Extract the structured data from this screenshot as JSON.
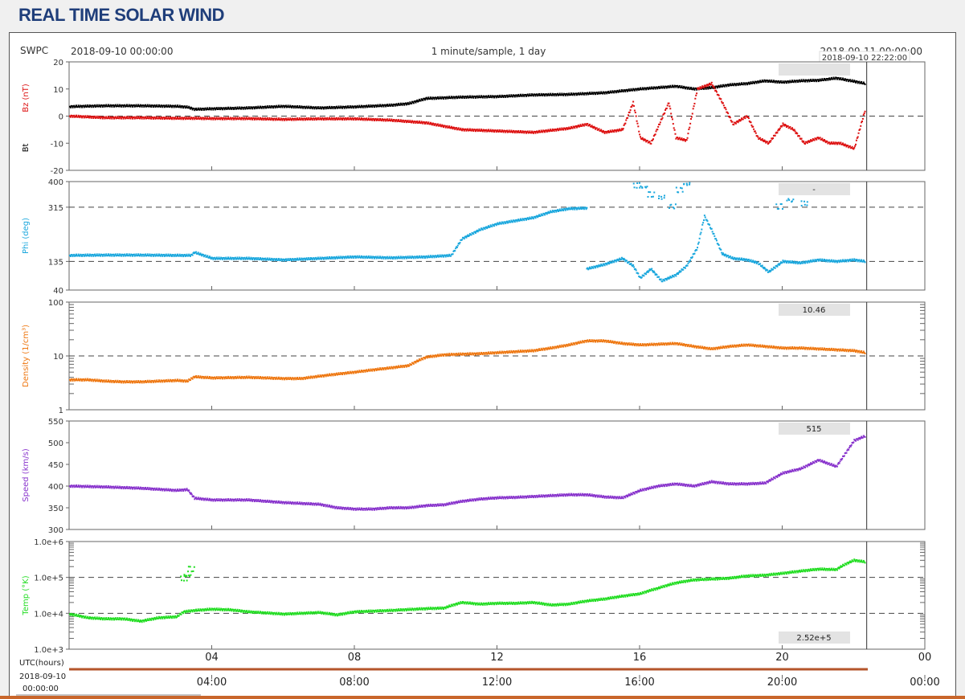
{
  "page": {
    "title": "REAL TIME SOLAR WIND"
  },
  "header": {
    "source": "SWPC",
    "start_label": "2018-09-10 00:00:00",
    "cadence_label": "1 minute/sample, 1 day",
    "end_label": "2018-09-11 00:00:00",
    "cursor_time": "2018-09-10 22:22:00"
  },
  "colors": {
    "bt": "#000000",
    "bz": "#dd1111",
    "phi": "#1aa7dd",
    "density": "#ee7711",
    "speed": "#8833cc",
    "temp": "#22dd22",
    "readout_bg": "#e3e3e3",
    "timeline": "#b5552b"
  },
  "timeline": {
    "top_label": "UTC(hours)",
    "bottom_date": "2018-09-10",
    "bottom_time": "00:00:00"
  },
  "chart_data": [
    {
      "type": "scatter",
      "title": "",
      "ylabel": "Bz (nT)",
      "ylabel2": "Bt",
      "ylim": [
        -20,
        20
      ],
      "yticks": [
        20,
        10,
        0,
        -10,
        -20
      ],
      "dashed_ref": [
        0
      ],
      "readout": "",
      "series": [
        {
          "name": "Bt",
          "x": [
            0,
            1,
            2,
            3,
            3.3,
            3.5,
            4,
            5,
            6,
            7,
            8,
            9,
            9.5,
            10,
            11,
            12,
            13,
            14,
            14.5,
            15,
            16,
            16.5,
            17,
            17.5,
            18,
            18.5,
            19,
            19.5,
            20,
            20.5,
            21,
            21.5,
            22,
            22.3
          ],
          "y": [
            3.5,
            3.8,
            3.8,
            3.6,
            3.3,
            2.5,
            2.7,
            3,
            3.6,
            3,
            3.4,
            4,
            4.6,
            6.5,
            7,
            7.2,
            7.8,
            8,
            8.3,
            8.6,
            10,
            10.5,
            11,
            10,
            10.5,
            11.5,
            12,
            13,
            12.5,
            13,
            13.2,
            14,
            12.8,
            12
          ]
        },
        {
          "name": "Bz",
          "x": [
            0,
            1,
            2,
            3,
            3.5,
            4,
            5,
            6,
            7,
            8,
            9,
            10,
            11,
            12,
            13,
            14,
            14.5,
            15,
            15.5,
            15.8,
            16,
            16.3,
            16.8,
            17,
            17.3,
            17.6,
            18,
            18.3,
            18.6,
            19,
            19.3,
            19.6,
            20,
            20.3,
            20.6,
            21,
            21.3,
            21.6,
            22,
            22.3
          ],
          "y": [
            0,
            -0.6,
            -0.6,
            -0.8,
            -0.8,
            -0.9,
            -0.9,
            -1.2,
            -1,
            -1,
            -1.5,
            -2.5,
            -5,
            -5.5,
            -6,
            -4.5,
            -3,
            -6,
            -5,
            5,
            -8,
            -10,
            5,
            -8,
            -9,
            10,
            12,
            5,
            -3,
            0,
            -8,
            -10,
            -3,
            -5,
            -10,
            -8,
            -10,
            -10,
            -12,
            2
          ]
        }
      ]
    },
    {
      "type": "scatter",
      "title": "",
      "ylabel": "Phi (deg)",
      "ylim": [
        40,
        400
      ],
      "yticks": [
        400,
        315,
        135,
        40
      ],
      "dashed_ref": [
        315,
        135
      ],
      "readout": "-",
      "series": [
        {
          "name": "Phi",
          "x": [
            0,
            1,
            2,
            3,
            3.4,
            3.5,
            4,
            5,
            6,
            7,
            8,
            9,
            10,
            10.7,
            11,
            11.5,
            12,
            12.5,
            13,
            13.5,
            14,
            14.5
          ],
          "y": [
            155,
            156,
            156,
            155,
            155,
            165,
            145,
            145,
            140,
            145,
            150,
            147,
            150,
            155,
            210,
            240,
            260,
            270,
            280,
            300,
            310,
            312
          ]
        },
        {
          "name": "Phi",
          "x": [
            14.5,
            15,
            15.5,
            15.8,
            16,
            16.3,
            16.6,
            17,
            17.3,
            17.6,
            17.8,
            18,
            18.3,
            18.6,
            19,
            19.3,
            19.6,
            20,
            20.5,
            21,
            21.5,
            22,
            22.3
          ],
          "y": [
            110,
            125,
            145,
            120,
            80,
            110,
            70,
            90,
            120,
            180,
            285,
            240,
            160,
            145,
            140,
            130,
            100,
            135,
            130,
            140,
            135,
            140,
            135
          ]
        },
        {
          "name": "Phi",
          "x": [
            15.9,
            16.1,
            16.3,
            16.6,
            16.9,
            17.1,
            17.3,
            19.9,
            20.2,
            20.6
          ],
          "y": [
            390,
            385,
            360,
            350,
            320,
            375,
            395,
            320,
            340,
            330
          ]
        }
      ]
    },
    {
      "type": "scatter",
      "title": "",
      "ylabel": "Density (1/cm³)",
      "yscale": "log",
      "ylim": [
        1,
        100
      ],
      "yticks": [
        100,
        10,
        1
      ],
      "dashed_ref": [
        10
      ],
      "readout": "10.46",
      "series": [
        {
          "name": "Density",
          "x": [
            0,
            0.5,
            1,
            1.5,
            2,
            2.5,
            3,
            3.3,
            3.5,
            4,
            5,
            6,
            6.5,
            7,
            7.5,
            8,
            8.5,
            9,
            9.5,
            10,
            10.5,
            11,
            11.5,
            12,
            12.5,
            13,
            13.5,
            14,
            14.5,
            15,
            15.5,
            16,
            16.5,
            17,
            17.5,
            18,
            18.5,
            19,
            19.5,
            20,
            20.5,
            21,
            21.5,
            22,
            22.3
          ],
          "y": [
            3.6,
            3.6,
            3.4,
            3.3,
            3.3,
            3.4,
            3.5,
            3.4,
            4.1,
            3.9,
            4,
            3.8,
            3.8,
            4.2,
            4.6,
            5,
            5.5,
            6,
            6.6,
            9.5,
            10.5,
            10.8,
            11,
            11.5,
            12,
            12.5,
            14,
            16,
            19,
            19,
            17,
            16,
            16.5,
            17,
            15,
            13.5,
            15,
            16,
            15,
            14,
            14,
            13.5,
            13,
            12.5,
            11.5
          ]
        }
      ]
    },
    {
      "type": "scatter",
      "title": "",
      "ylabel": "Speed (km/s)",
      "ylim": [
        300,
        550
      ],
      "yticks": [
        550,
        500,
        450,
        400,
        350,
        300
      ],
      "dashed_ref": [],
      "readout": "515",
      "series": [
        {
          "name": "Speed",
          "x": [
            0,
            1,
            2,
            3,
            3.3,
            3.5,
            4,
            5,
            6,
            6.5,
            7,
            7.5,
            8,
            8.5,
            9,
            9.5,
            10,
            10.5,
            11,
            11.5,
            12,
            12.5,
            13,
            13.5,
            14,
            14.5,
            15,
            15.5,
            16,
            16.5,
            17,
            17.5,
            18,
            18.5,
            19,
            19.5,
            20,
            20.5,
            21,
            21.5,
            22,
            22.3
          ],
          "y": [
            400,
            398,
            395,
            390,
            392,
            372,
            368,
            368,
            362,
            360,
            358,
            350,
            347,
            347,
            350,
            350,
            355,
            357,
            365,
            370,
            373,
            374,
            376,
            378,
            380,
            380,
            375,
            373,
            390,
            400,
            405,
            400,
            410,
            405,
            405,
            407,
            430,
            440,
            460,
            445,
            505,
            515
          ]
        }
      ]
    },
    {
      "type": "scatter",
      "title": "",
      "ylabel": "Temp (°K)",
      "yscale": "log",
      "ylim": [
        1000,
        1000000
      ],
      "yticks": [
        "1.0e+6",
        "1.0e+5",
        "1.0e+4",
        "1.0e+3"
      ],
      "ytick_values": [
        1000000,
        100000,
        10000,
        1000
      ],
      "dashed_ref": [
        100000,
        10000
      ],
      "readout": "2.52e+5",
      "series": [
        {
          "name": "Temp",
          "x": [
            0,
            0.5,
            1,
            1.5,
            2,
            2.5,
            3,
            3.2,
            3.5,
            4,
            4.5,
            5,
            6,
            7,
            7.5,
            8,
            9,
            10,
            10.5,
            11,
            11.5,
            12,
            12.5,
            13,
            13.5,
            14,
            14.5,
            15,
            15.5,
            16,
            16.5,
            17,
            17.5,
            18,
            18.5,
            19,
            19.5,
            20,
            20.5,
            21,
            21.5,
            22,
            22.3
          ],
          "y": [
            9500,
            7500,
            7000,
            7000,
            6000,
            7500,
            8000,
            11000,
            12000,
            13000,
            12500,
            11000,
            9500,
            10500,
            9000,
            11000,
            12000,
            13500,
            14000,
            20000,
            18000,
            19000,
            19000,
            20000,
            17000,
            18000,
            22000,
            25000,
            30000,
            35000,
            50000,
            70000,
            85000,
            90000,
            95000,
            110000,
            115000,
            130000,
            150000,
            170000,
            165000,
            300000,
            270000
          ]
        },
        {
          "name": "Temp",
          "x": [
            3.2,
            3.3,
            3.4
          ],
          "y": [
            100000,
            120000,
            180000
          ]
        }
      ]
    }
  ],
  "x_axis": {
    "x_ticks": [
      4,
      8,
      12,
      16,
      20,
      24
    ],
    "x_labels": [
      "04",
      "08",
      "12",
      "16",
      "20",
      "00"
    ],
    "x_labels_time": [
      "04:00",
      "08:00",
      "12:00",
      "16:00",
      "20:00",
      "00:00"
    ],
    "xlim": [
      0,
      24
    ],
    "cursor_x": 22.37
  }
}
